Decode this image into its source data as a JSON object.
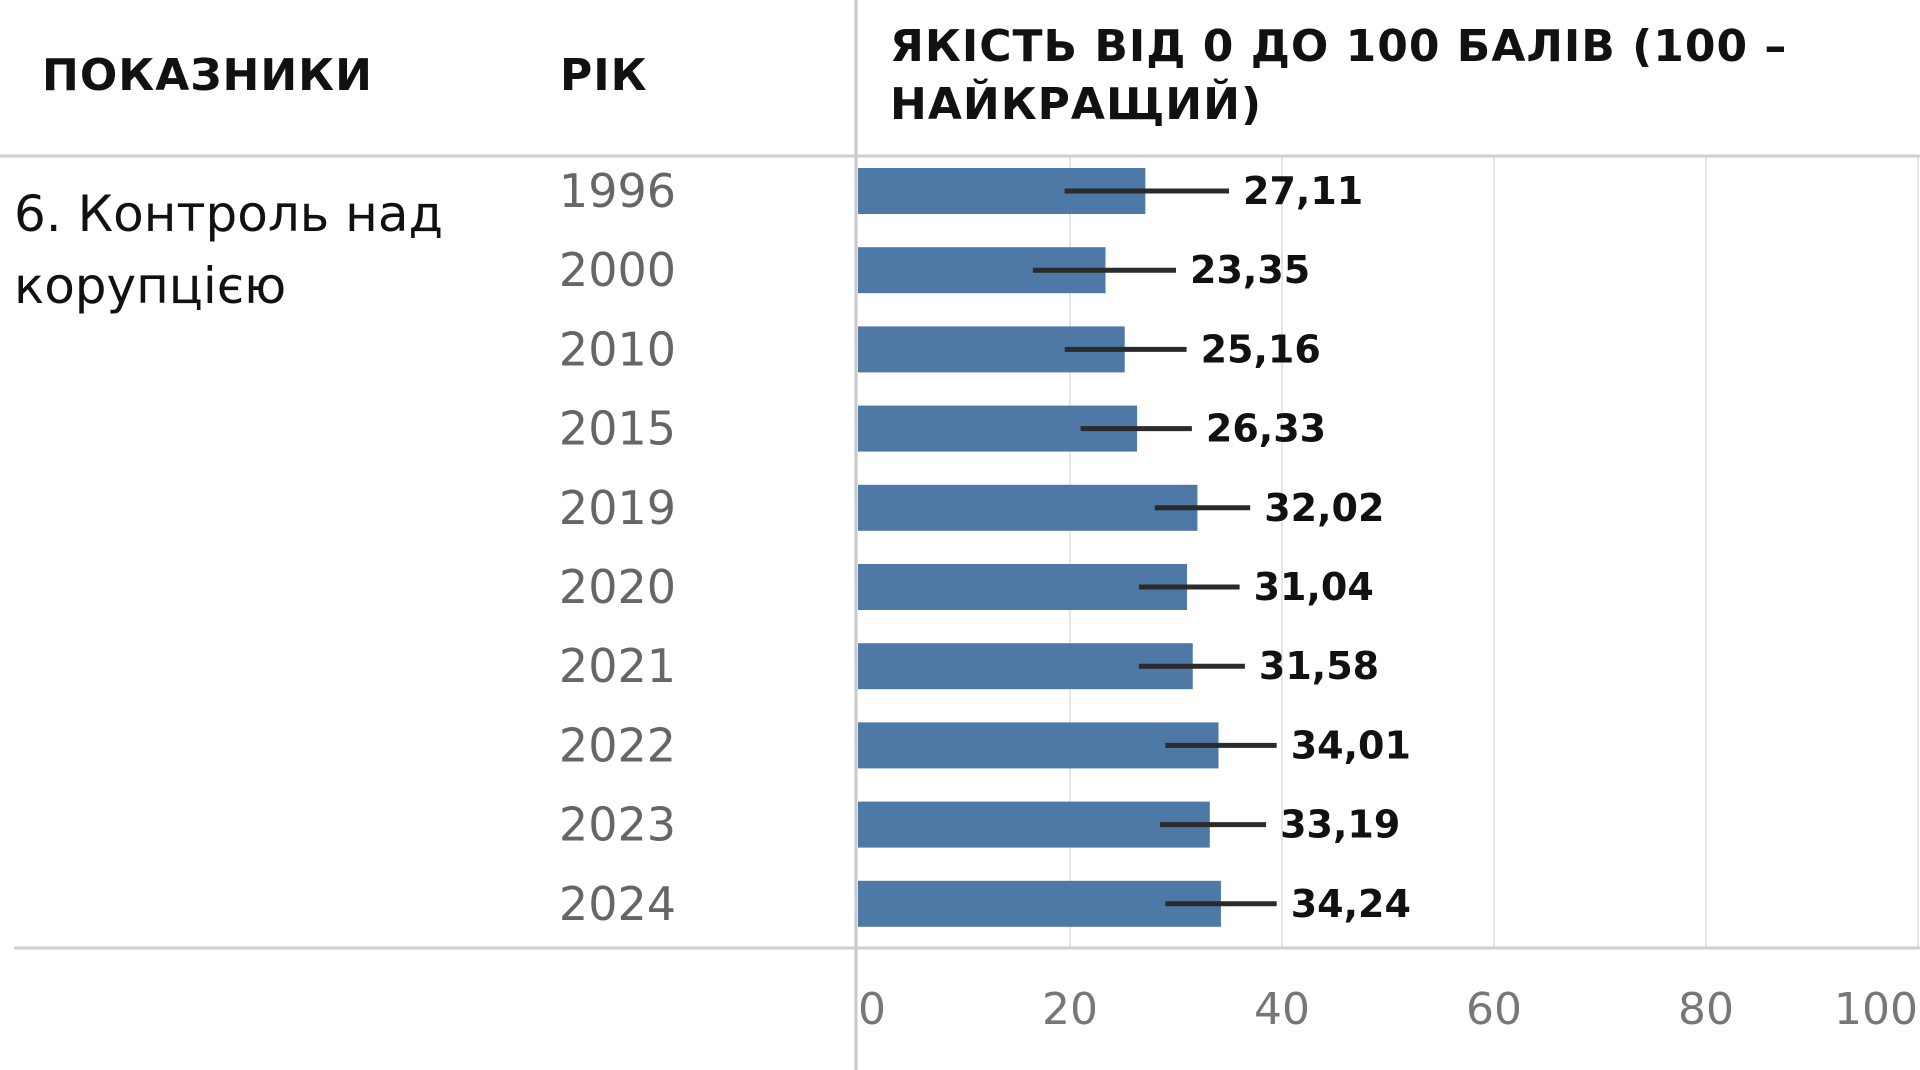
{
  "headers": {
    "indicators": "ПОКАЗНИКИ",
    "year": "РІК",
    "quality": "ЯКІСТЬ ВІД 0 ДО 100 БАЛІВ (100 – НАЙКРАЩИЙ)"
  },
  "indicator": "6. Контроль над корупцією",
  "chart_data": {
    "type": "bar",
    "orientation": "horizontal",
    "categories": [
      "1996",
      "2000",
      "2010",
      "2015",
      "2019",
      "2020",
      "2021",
      "2022",
      "2023",
      "2024"
    ],
    "values": [
      27.11,
      23.35,
      25.16,
      26.33,
      32.02,
      31.04,
      31.58,
      34.01,
      33.19,
      34.24
    ],
    "value_labels": [
      "27,11",
      "23,35",
      "25,16",
      "26,33",
      "32,02",
      "31,04",
      "31,58",
      "34,01",
      "33,19",
      "34,24"
    ],
    "error_low": [
      19.5,
      16.5,
      19.5,
      21.0,
      28.0,
      26.5,
      26.5,
      29.0,
      28.5,
      29.0
    ],
    "error_high": [
      35.0,
      30.0,
      31.0,
      31.5,
      37.0,
      36.0,
      36.5,
      39.5,
      38.5,
      39.5
    ],
    "xlim": [
      0,
      100
    ],
    "xticks": [
      0,
      20,
      40,
      60,
      80,
      100
    ],
    "xtick_labels": [
      "0",
      "20",
      "40",
      "60",
      "80",
      "100"
    ],
    "grid": true,
    "bar_color": "#4e79a7",
    "error_color": "#2b2b2b"
  }
}
